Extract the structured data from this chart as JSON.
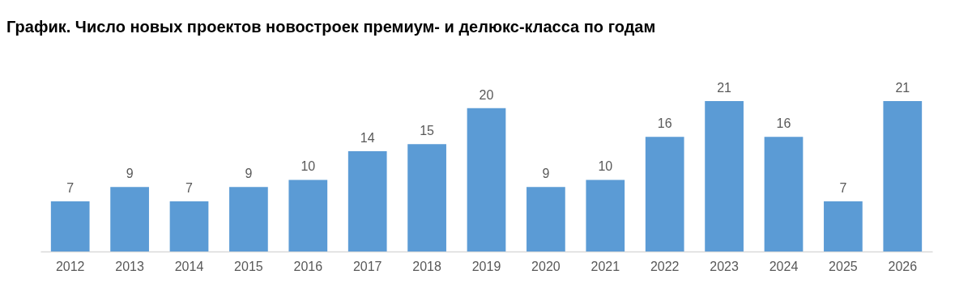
{
  "chart_data": {
    "type": "bar",
    "title": "График. Число новых проектов новостроек премиум- и делюкс-класса по годам",
    "categories": [
      "2012",
      "2013",
      "2014",
      "2015",
      "2016",
      "2017",
      "2018",
      "2019",
      "2020",
      "2021",
      "2022",
      "2023",
      "2024",
      "2025",
      "2026"
    ],
    "values": [
      7,
      9,
      7,
      9,
      10,
      14,
      15,
      20,
      9,
      10,
      16,
      21,
      16,
      7,
      21
    ],
    "color": "#5b9bd5",
    "data_labels": true,
    "tick_labels": "x"
  }
}
